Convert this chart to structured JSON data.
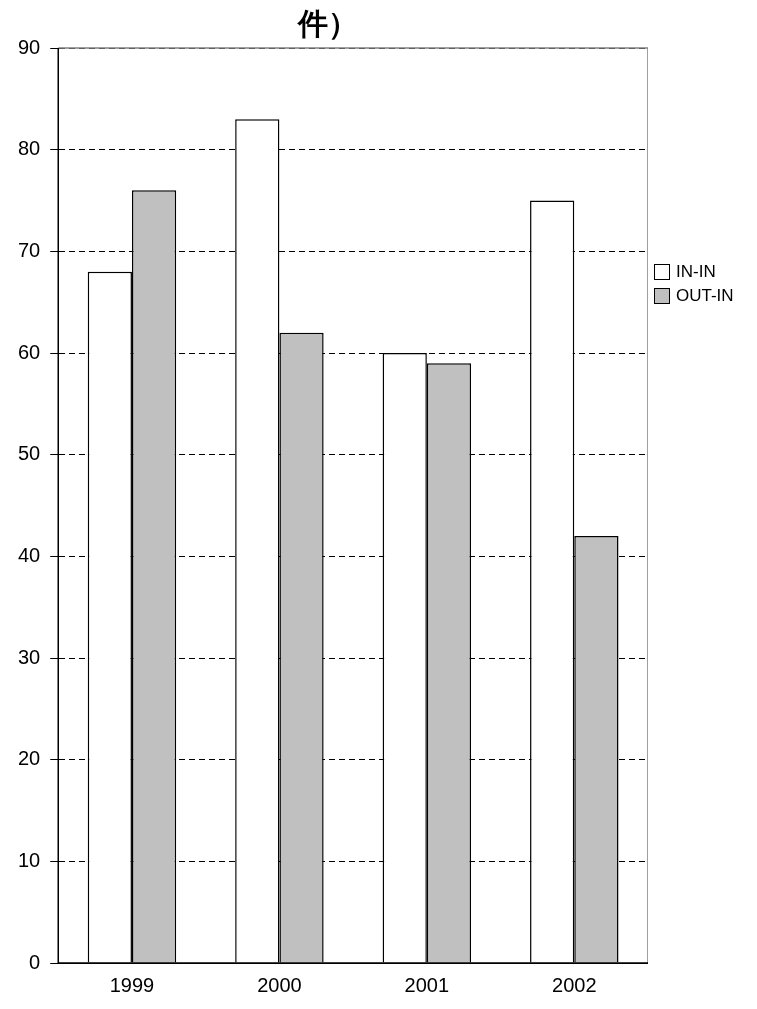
{
  "chart_data": {
    "type": "bar",
    "title": "件）",
    "categories": [
      "1999",
      "2000",
      "2001",
      "2002"
    ],
    "series": [
      {
        "name": "IN-IN",
        "color": "#ffffff",
        "values": [
          68,
          83,
          60,
          75
        ]
      },
      {
        "name": "OUT-IN",
        "color": "#c0c0c0",
        "values": [
          76,
          62,
          59,
          42
        ]
      }
    ],
    "ylim": [
      0,
      90
    ],
    "yticks": [
      0,
      10,
      20,
      30,
      40,
      50,
      60,
      70,
      80,
      90
    ],
    "grid": "y",
    "line_style": "dashed",
    "legend": "right"
  }
}
